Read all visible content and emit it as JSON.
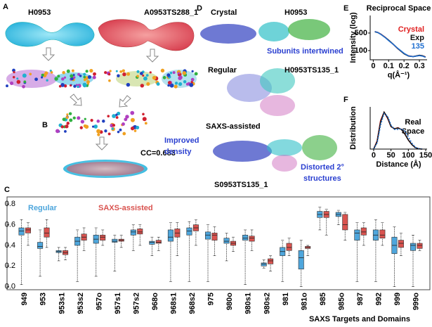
{
  "panels": {
    "A": {
      "label": "A",
      "left_title": "H0953",
      "right_title": "A0953TS288_1"
    },
    "B": {
      "label": "B",
      "cc": "CC=0.683"
    },
    "D": {
      "label": "D",
      "crystal": "Crystal",
      "crystal_id": "H0953",
      "note_crystal": "Subunits intertwined",
      "regular": "Regular",
      "regular_id": "H0953TS135_1",
      "saxs": "SAXS-assisted",
      "note_saxs": [
        "Improved",
        "density"
      ],
      "saxs_id": "S0953TS135_1",
      "note_distorted": [
        "Distorted 2°",
        "structures"
      ]
    }
  },
  "chart_data": [
    {
      "type": "line",
      "label": "E",
      "title": "Reciprocal Space",
      "xlabel": "q(Å⁻¹)",
      "ylabel": "Intensity (log)",
      "log_y": true,
      "x": [
        0.01,
        0.03,
        0.05,
        0.08,
        0.1,
        0.13,
        0.16,
        0.2,
        0.23,
        0.26,
        0.3,
        0.32,
        0.34
      ],
      "series": [
        {
          "name": "Crystal",
          "color": "#e02020",
          "values": [
            580,
            530,
            450,
            330,
            255,
            175,
            118,
            76,
            62,
            58,
            64,
            62,
            56
          ]
        },
        {
          "name": "Exp",
          "color": "#111111",
          "values": [
            560,
            520,
            445,
            325,
            260,
            180,
            120,
            75,
            60,
            58,
            65,
            62,
            55
          ]
        },
        {
          "name": "135",
          "color": "#1f6fd0",
          "values": [
            570,
            525,
            440,
            320,
            250,
            178,
            122,
            78,
            61,
            57,
            63,
            60,
            54
          ]
        }
      ],
      "xlim": [
        -0.02,
        0.35
      ],
      "ylim": [
        43,
        2500
      ],
      "xticks": [
        0,
        0.1,
        0.2,
        0.3
      ],
      "yticks": [
        100,
        500
      ]
    },
    {
      "type": "line",
      "label": "F",
      "title": [
        "Real",
        "Space"
      ],
      "xlabel": "Distance (Å)",
      "ylabel": "Distribution",
      "x": [
        0,
        10,
        20,
        30,
        40,
        50,
        60,
        70,
        80,
        90,
        100,
        110,
        120,
        130,
        140
      ],
      "series": [
        {
          "color": "#e02020",
          "values": [
            0,
            0.55,
            1.9,
            2.45,
            2.05,
            1.5,
            1.35,
            1.42,
            1.3,
            1.0,
            0.6,
            0.3,
            0.1,
            0.02,
            0
          ]
        },
        {
          "color": "#111111",
          "values": [
            0,
            0.5,
            1.8,
            2.45,
            2.1,
            1.5,
            1.35,
            1.4,
            1.3,
            1.0,
            0.6,
            0.3,
            0.1,
            0.02,
            0
          ]
        },
        {
          "color": "#1f6fd0",
          "dash": true,
          "values": [
            0,
            0.4,
            1.6,
            2.35,
            2.2,
            1.6,
            1.3,
            1.3,
            1.35,
            1.2,
            0.8,
            0.4,
            0.12,
            0.03,
            0
          ]
        }
      ],
      "xlim": [
        -10,
        154
      ],
      "ylim": [
        0,
        2.8
      ],
      "xticks": [
        0,
        50,
        100,
        150
      ]
    },
    {
      "type": "box",
      "label": "C",
      "xlabel": "SAXS Targets and Domains",
      "categories": [
        "949",
        "953",
        "953s1",
        "953s2",
        "957o",
        "957s1",
        "957s2",
        "968o",
        "968s1",
        "968s2",
        "975",
        "980o",
        "980s1",
        "980s2",
        "981",
        "981o",
        "985",
        "985o",
        "987",
        "992",
        "999",
        "999o"
      ],
      "series": [
        {
          "name": "Regular",
          "color": "#4ea6dc",
          "values": [
            [
              0.02,
              0.5,
              0.54,
              0.57,
              0.65
            ],
            [
              0.1,
              0.37,
              0.39,
              0.43,
              0.55
            ],
            [
              0.25,
              0.33,
              0.34,
              0.35,
              0.38
            ],
            [
              0.05,
              0.4,
              0.44,
              0.48,
              0.55
            ],
            [
              0.1,
              0.42,
              0.46,
              0.5,
              0.57
            ],
            [
              0.15,
              0.43,
              0.44,
              0.46,
              0.5
            ],
            [
              0.35,
              0.5,
              0.53,
              0.55,
              0.6
            ],
            [
              0.3,
              0.41,
              0.43,
              0.44,
              0.48
            ],
            [
              0.05,
              0.44,
              0.48,
              0.55,
              0.62
            ],
            [
              0.05,
              0.5,
              0.54,
              0.57,
              0.63
            ],
            [
              0.05,
              0.46,
              0.5,
              0.53,
              0.6
            ],
            [
              0.25,
              0.42,
              0.44,
              0.47,
              0.52
            ],
            [
              0.02,
              0.45,
              0.47,
              0.5,
              0.55
            ],
            [
              0.18,
              0.2,
              0.22,
              0.23,
              0.26
            ],
            [
              0.05,
              0.3,
              0.34,
              0.38,
              0.45
            ],
            [
              0,
              0.17,
              0.28,
              0.35,
              0.45
            ],
            [
              0.55,
              0.67,
              0.7,
              0.73,
              0.77
            ],
            [
              0.6,
              0.68,
              0.7,
              0.72,
              0.74
            ],
            [
              0.05,
              0.45,
              0.52,
              0.55,
              0.62
            ],
            [
              0.05,
              0.45,
              0.5,
              0.55,
              0.65
            ],
            [
              0,
              0.32,
              0.4,
              0.48,
              0.58
            ],
            [
              0,
              0.35,
              0.4,
              0.42,
              0.5
            ]
          ]
        },
        {
          "name": "SAXS-assisted",
          "color": "#d9534f",
          "values": [
            [
              0.4,
              0.52,
              0.55,
              0.57,
              0.62
            ],
            [
              0.38,
              0.48,
              0.52,
              0.57,
              0.65
            ],
            [
              0.26,
              0.31,
              0.33,
              0.35,
              0.38
            ],
            [
              0.35,
              0.45,
              0.48,
              0.51,
              0.57
            ],
            [
              0.4,
              0.45,
              0.48,
              0.5,
              0.55
            ],
            [
              0.38,
              0.44,
              0.45,
              0.46,
              0.5
            ],
            [
              0.4,
              0.51,
              0.53,
              0.56,
              0.6
            ],
            [
              0.35,
              0.42,
              0.43,
              0.45,
              0.48
            ],
            [
              0.3,
              0.48,
              0.52,
              0.56,
              0.62
            ],
            [
              0.4,
              0.54,
              0.57,
              0.6,
              0.65
            ],
            [
              0.3,
              0.45,
              0.5,
              0.52,
              0.58
            ],
            [
              0.34,
              0.4,
              0.42,
              0.44,
              0.48
            ],
            [
              0.35,
              0.44,
              0.47,
              0.49,
              0.55
            ],
            [
              0.15,
              0.22,
              0.25,
              0.27,
              0.3
            ],
            [
              0.3,
              0.35,
              0.38,
              0.42,
              0.47
            ],
            [
              0.3,
              0.37,
              0.38,
              0.39,
              0.4
            ],
            [
              0.5,
              0.67,
              0.7,
              0.73,
              0.75
            ],
            [
              0.45,
              0.55,
              0.6,
              0.7,
              0.72
            ],
            [
              0.4,
              0.5,
              0.53,
              0.57,
              0.62
            ],
            [
              0.4,
              0.47,
              0.5,
              0.55,
              0.62
            ],
            [
              0.3,
              0.38,
              0.42,
              0.45,
              0.52
            ],
            [
              0.35,
              0.37,
              0.4,
              0.42,
              0.45
            ]
          ]
        }
      ],
      "ylim": [
        -0.03,
        0.87
      ],
      "yticks": [
        {
          "value": 0,
          "label": "0.0"
        },
        0.2,
        0.4,
        0.6,
        0.8
      ]
    }
  ]
}
